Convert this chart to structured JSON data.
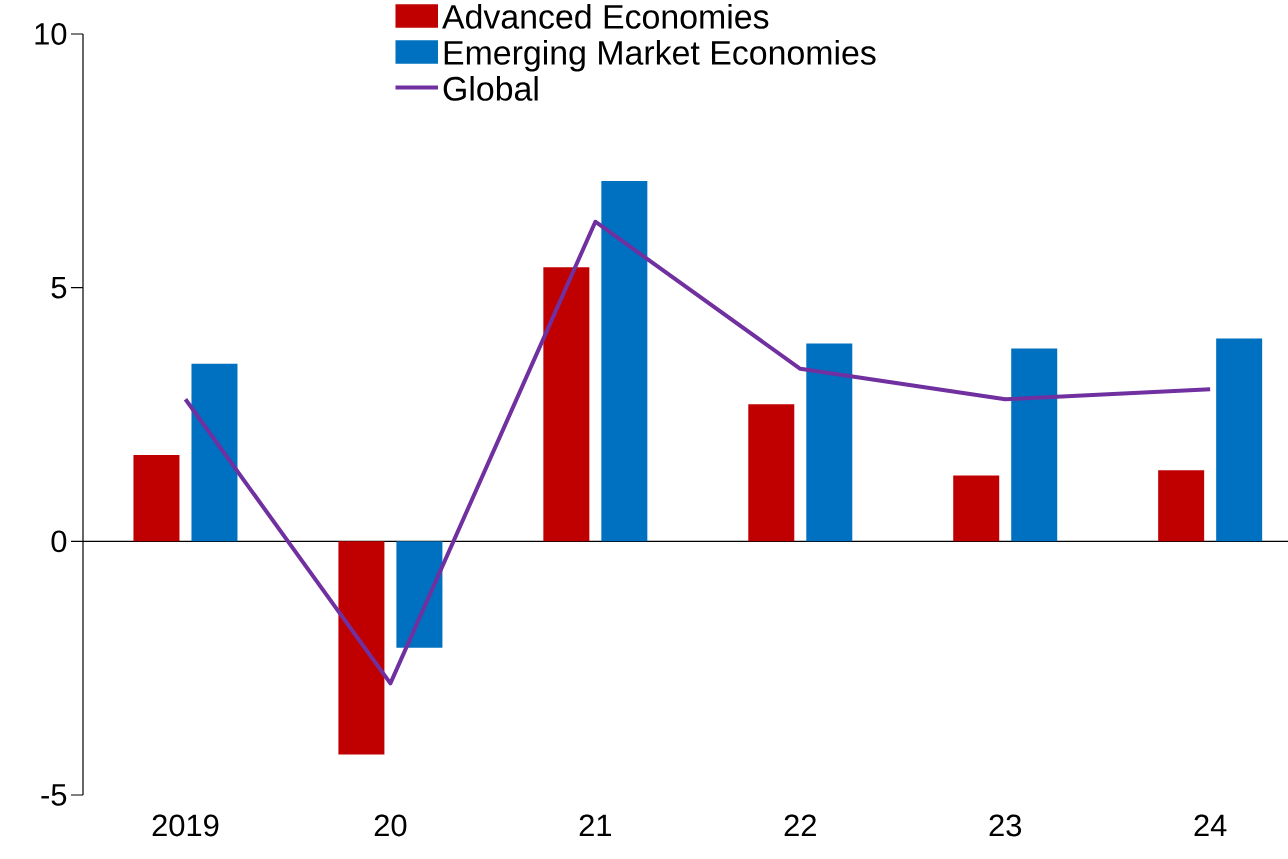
{
  "chart_data": {
    "type": "bar",
    "categories": [
      "2019",
      "20",
      "21",
      "22",
      "23",
      "24"
    ],
    "series": [
      {
        "name": "Advanced Economies",
        "color": "#c00000",
        "values": [
          1.7,
          -4.2,
          5.4,
          2.7,
          1.3,
          1.4
        ]
      },
      {
        "name": "Emerging Market Economies",
        "color": "#0070c0",
        "values": [
          3.5,
          -2.1,
          7.1,
          3.9,
          3.8,
          4.0
        ]
      },
      {
        "name": "Global",
        "type": "line",
        "color": "#7030a0",
        "values": [
          2.8,
          -2.8,
          6.3,
          3.4,
          2.8,
          3.0
        ]
      }
    ],
    "ylim": [
      -5,
      10
    ],
    "yticks": [
      -5,
      0,
      5,
      10
    ],
    "legend": "top"
  }
}
